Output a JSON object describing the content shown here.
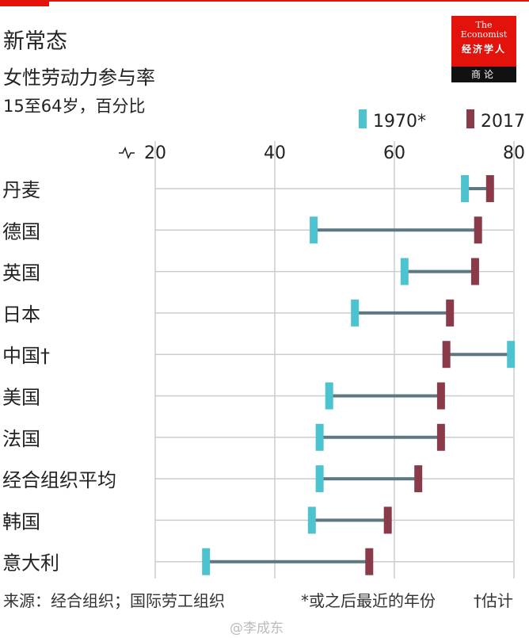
{
  "header": {
    "title": "新常态",
    "subtitle": "女性劳动力参与率",
    "unit": "15至64岁，百分比"
  },
  "logo": {
    "en_line1": "The",
    "en_line2": "Economist",
    "cn": "经济学人",
    "sub": "商论"
  },
  "footer": {
    "source": "来源：经合组织；国际劳工组织",
    "note": "*或之后最近的年份",
    "note2": "†估计",
    "watermark": "@李成东"
  },
  "colors": {
    "series_1970": "#4cc3cf",
    "series_2017": "#8b3a4a",
    "connector": "#5e7882",
    "grid": "#c8cdd0",
    "accent": "#e3120b"
  },
  "chart_data": {
    "type": "dumbbell",
    "xlim": [
      20,
      80
    ],
    "xticks": [
      "20",
      "40",
      "60",
      "80"
    ],
    "axis_break": true,
    "grid": true,
    "legend_placement": "top-right",
    "series": [
      {
        "name": "1970*",
        "key": "v1970"
      },
      {
        "name": "2017",
        "key": "v2017"
      }
    ],
    "categories": [
      "丹麦",
      "德国",
      "英国",
      "日本",
      "中国†",
      "美国",
      "法国",
      "经合组织平均",
      "韩国",
      "意大利"
    ],
    "v1970": [
      71.8,
      46.5,
      61.7,
      53.4,
      79.5,
      49.1,
      47.5,
      47.5,
      46.2,
      28.5
    ],
    "v2017": [
      76.0,
      74.0,
      73.5,
      69.3,
      68.7,
      67.8,
      67.8,
      64.0,
      58.9,
      55.8
    ]
  }
}
